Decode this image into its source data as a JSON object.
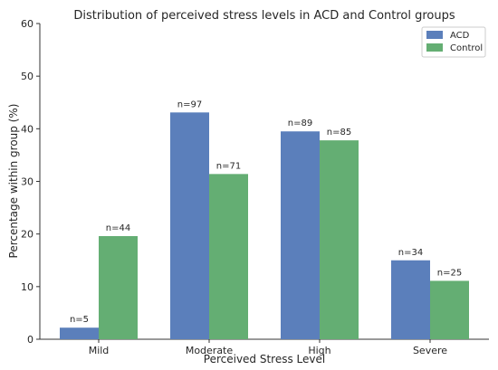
{
  "chart_data": {
    "type": "bar",
    "title": "Distribution of perceived stress levels in ACD and Control groups",
    "xlabel": "Perceived Stress Level",
    "ylabel": "Percentage within group (%)",
    "categories": [
      "Mild",
      "Moderate",
      "High",
      "Severe"
    ],
    "ylim": [
      0,
      60
    ],
    "yticks": [
      0,
      10,
      20,
      30,
      40,
      50,
      60
    ],
    "grid": false,
    "legend_position": "top-right",
    "series": [
      {
        "name": "ACD",
        "color": "#5b7fbb",
        "values": [
          2.2,
          43.1,
          39.5,
          15.0
        ],
        "labels": [
          "n=5",
          "n=97",
          "n=89",
          "n=34"
        ]
      },
      {
        "name": "Control",
        "color": "#64ae73",
        "values": [
          19.6,
          31.4,
          37.8,
          11.1
        ],
        "labels": [
          "n=44",
          "n=71",
          "n=85",
          "n=25"
        ]
      }
    ]
  }
}
